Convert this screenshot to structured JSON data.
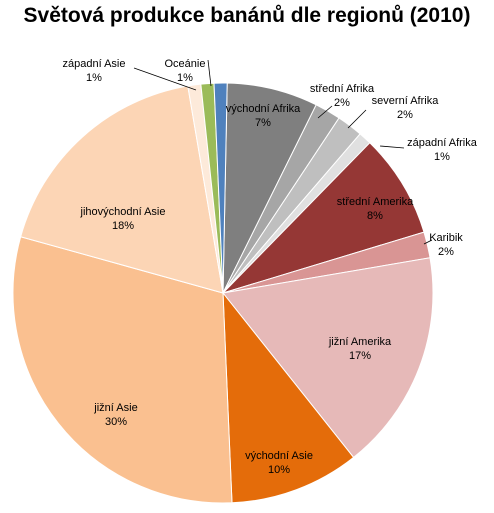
{
  "chart_data": {
    "type": "pie",
    "title": "Světová produkce banánů dle regionů (2010)",
    "slices": [
      {
        "label": "východní Afrika",
        "value": 7,
        "value_label": "7%",
        "color": "#7f7f7f"
      },
      {
        "label": "střední Afrika",
        "value": 2,
        "value_label": "2%",
        "color": "#a6a6a6"
      },
      {
        "label": "severní Afrika",
        "value": 2,
        "value_label": "2%",
        "color": "#bfbfbf"
      },
      {
        "label": "západní Afrika",
        "value": 1,
        "value_label": "1%",
        "color": "#e0e0e0"
      },
      {
        "label": "střední Amerika",
        "value": 8,
        "value_label": "8%",
        "color": "#953735"
      },
      {
        "label": "Karibik",
        "value": 2,
        "value_label": "2%",
        "color": "#d99594"
      },
      {
        "label": "jižní Amerika",
        "value": 17,
        "value_label": "17%",
        "color": "#e6b9b8"
      },
      {
        "label": "východní Asie",
        "value": 10,
        "value_label": "10%",
        "color": "#e46c0a"
      },
      {
        "label": "jižní Asie",
        "value": 30,
        "value_label": "30%",
        "color": "#fac090"
      },
      {
        "label": "jihovýchodní Asie",
        "value": 18,
        "value_label": "18%",
        "color": "#fcd5b5"
      },
      {
        "label": "západní Asie",
        "value": 1,
        "value_label": "1%",
        "color": "#fdeada"
      },
      {
        "label": "Oceánie",
        "value": 1,
        "value_label": "1%",
        "color": "#9bbb59"
      },
      {
        "label": "Oceánie",
        "value": 1,
        "value_label": "1%",
        "color": "#4f81bd"
      }
    ]
  }
}
